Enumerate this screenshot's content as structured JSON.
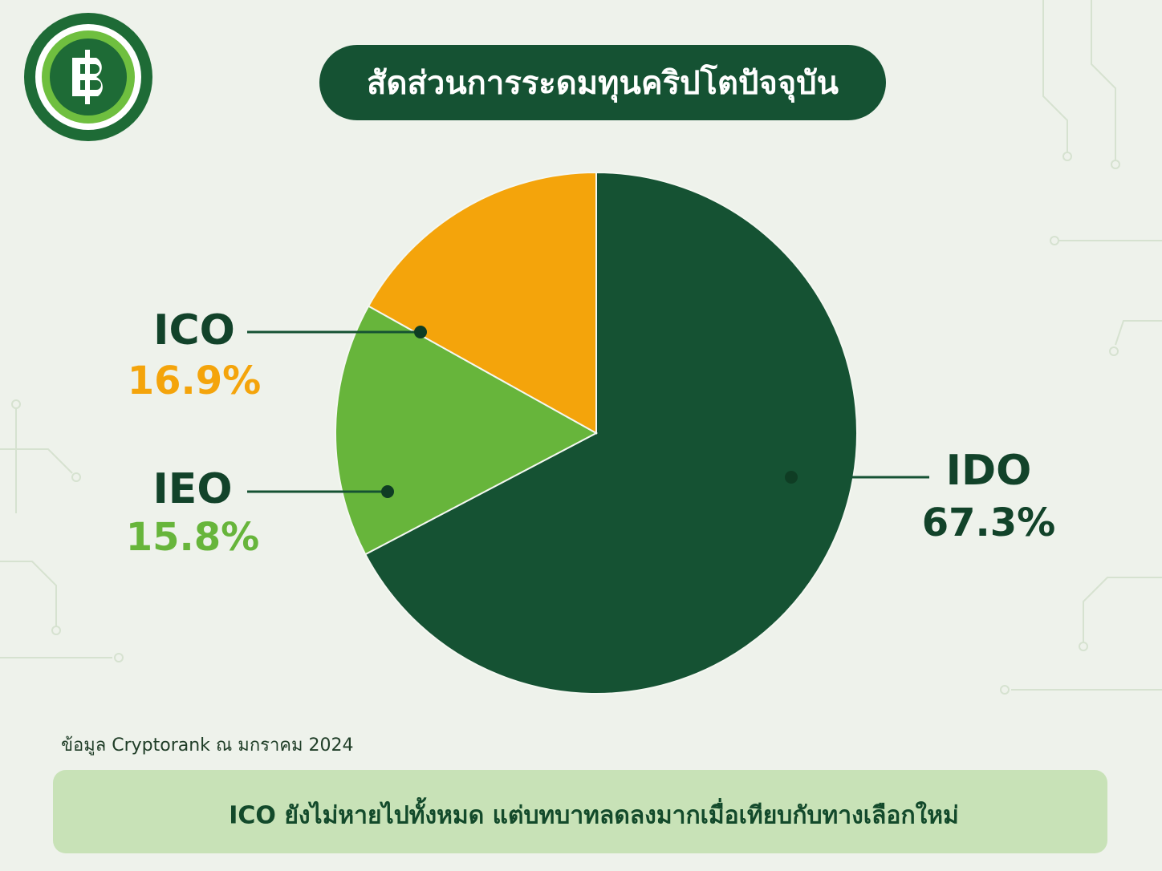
{
  "chart_data": {
    "type": "pie",
    "title": "สัดส่วนการระดมทุนคริปโตปัจจุบัน",
    "categories": [
      "IDO",
      "IEO",
      "ICO"
    ],
    "values": [
      67.3,
      15.8,
      16.9
    ],
    "value_labels": [
      "67.3%",
      "15.8%",
      "16.9%"
    ],
    "colors": [
      "#155233",
      "#67b53b",
      "#f4a40b"
    ],
    "source": "ข้อมูล Cryptorank ณ มกราคม 2024",
    "annotation": "ICO ยังไม่หายไปทั้งหมด แต่บทบาทลดลงมากเมื่อเทียบกับทางเลือกใหม่"
  }
}
